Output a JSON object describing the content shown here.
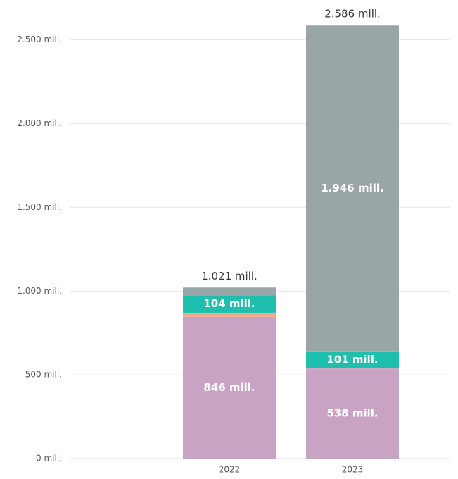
{
  "chart_data": {
    "type": "stacked_bar",
    "categories": [
      "2022",
      "2023"
    ],
    "series": [
      {
        "color": "#c9a3c3",
        "values": [
          846,
          538
        ],
        "value_labels": [
          "846 mill.",
          "538 mill."
        ]
      },
      {
        "color": "#f2a88a",
        "values": [
          25,
          1
        ],
        "value_labels": [
          null,
          null
        ]
      },
      {
        "color": "#1fbfb0",
        "values": [
          104,
          101
        ],
        "value_labels": [
          "104 mill.",
          "101 mill."
        ]
      },
      {
        "color": "#9aa5a6",
        "values": [
          46,
          1946
        ],
        "value_labels": [
          null,
          "1.946 mill."
        ]
      }
    ],
    "totals": [
      1021,
      2586
    ],
    "total_labels": [
      "1.021 mill.",
      "2.586 mill."
    ],
    "ylim": [
      0,
      2650
    ],
    "yticks": [
      {
        "value": 0,
        "label": "0 mill."
      },
      {
        "value": 500,
        "label": "500 mill."
      },
      {
        "value": 1000,
        "label": "1.000 mill."
      },
      {
        "value": 1500,
        "label": "1.500 mill."
      },
      {
        "value": 2000,
        "label": "2.000 mill."
      },
      {
        "value": 2500,
        "label": "2.500 mill."
      }
    ],
    "grid": true
  }
}
